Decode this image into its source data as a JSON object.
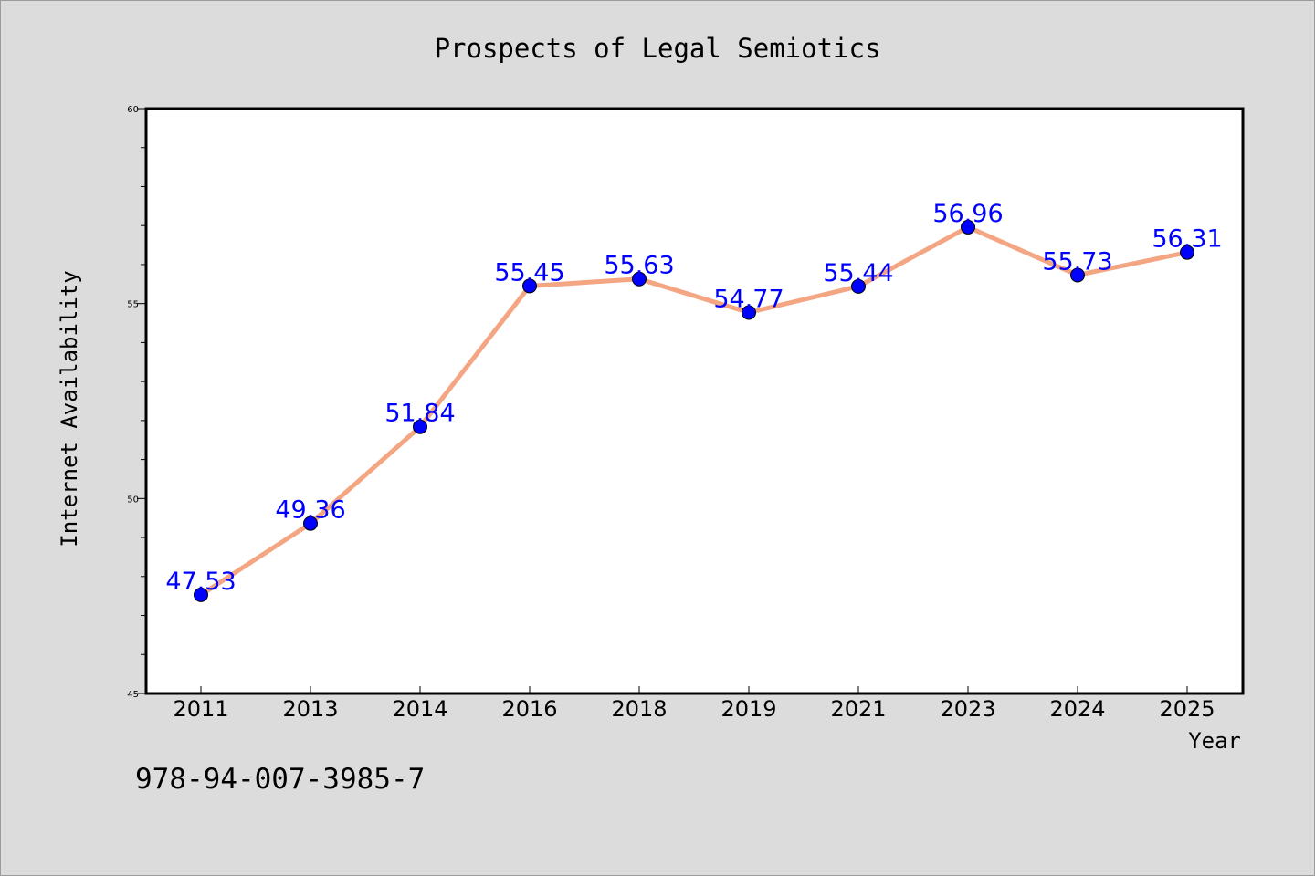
{
  "chart_data": {
    "type": "line",
    "title": "Prospects of Legal Semiotics",
    "xlabel": "Year",
    "ylabel": "Internet Availability",
    "categories": [
      "2011",
      "2013",
      "2014",
      "2016",
      "2018",
      "2019",
      "2021",
      "2023",
      "2024",
      "2025"
    ],
    "series": [
      {
        "values": [
          47.53,
          49.36,
          51.84,
          55.45,
          55.63,
          54.77,
          55.44,
          56.96,
          55.73,
          56.31
        ]
      }
    ],
    "data_labels": [
      "47.53",
      "49.36",
      "51.84",
      "55.45",
      "55.63",
      "54.77",
      "55.44",
      "56.96",
      "55.73",
      "56.31"
    ],
    "ylim": [
      45,
      60
    ],
    "yticks": [
      45,
      50,
      55,
      60
    ],
    "grid": false,
    "legend": "none",
    "colors": {
      "line": "#f4a582",
      "marker": "#0000ff",
      "data_label": "#0000ff",
      "background": "#dcdcdc",
      "plot_background": "#ffffff"
    }
  },
  "footer": {
    "isbn": "978-94-007-3985-7"
  }
}
